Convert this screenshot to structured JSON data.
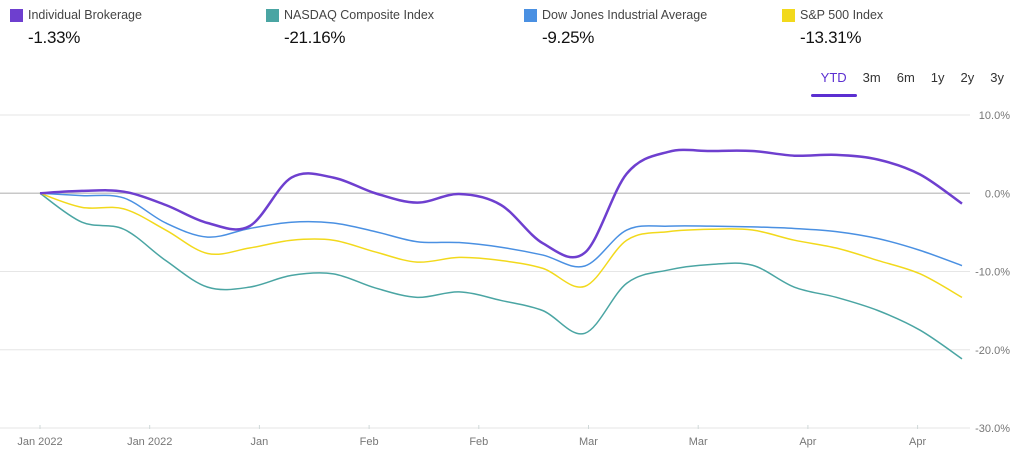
{
  "legend": [
    {
      "name": "Individual Brokerage",
      "value": "-1.33%",
      "color": "#6e3fcf"
    },
    {
      "name": "NASDAQ Composite Index",
      "value": "-21.16%",
      "color": "#4aa5a3"
    },
    {
      "name": "Dow Jones Industrial Average",
      "value": "-9.25%",
      "color": "#4a90e2"
    },
    {
      "name": "S&P 500 Index",
      "value": "-13.31%",
      "color": "#f2d91c"
    }
  ],
  "ranges": [
    {
      "label": "YTD",
      "active": true
    },
    {
      "label": "3m"
    },
    {
      "label": "6m"
    },
    {
      "label": "1y"
    },
    {
      "label": "2y"
    },
    {
      "label": "3y"
    }
  ],
  "chart_data": {
    "type": "line",
    "x_tick_labels": [
      "Jan 2022",
      "Jan 2022",
      "Jan",
      "Feb",
      "Feb",
      "Mar",
      "Mar",
      "Apr",
      "Apr"
    ],
    "y_tick_labels": [
      "10.0%",
      "0.0%",
      "-10.0%",
      "-20.0%",
      "-30.0%"
    ],
    "ylim": [
      -30,
      10
    ],
    "y_axis_position": "right",
    "grid": true,
    "series": [
      {
        "name": "Individual Brokerage",
        "color": "#6e3fcf",
        "values": [
          0,
          0.3,
          0.2,
          -1.5,
          -3.8,
          -4.2,
          2.0,
          2.0,
          0.0,
          -1.2,
          -0.1,
          -1.5,
          -6.4,
          -7.6,
          2.5,
          5.3,
          5.4,
          5.4,
          4.8,
          4.9,
          4.3,
          2.4,
          -1.33
        ]
      },
      {
        "name": "NASDAQ Composite Index",
        "color": "#4aa5a3",
        "values": [
          0,
          -3.7,
          -4.6,
          -8.6,
          -12.0,
          -12.0,
          -10.5,
          -10.3,
          -12.1,
          -13.3,
          -12.6,
          -13.7,
          -15.0,
          -17.9,
          -11.5,
          -9.8,
          -9.1,
          -9.2,
          -12.0,
          -13.3,
          -15.0,
          -17.5,
          -21.16
        ]
      },
      {
        "name": "Dow Jones Industrial Average",
        "color": "#4a90e2",
        "values": [
          0,
          -0.3,
          -0.6,
          -3.8,
          -5.6,
          -4.5,
          -3.7,
          -3.8,
          -4.9,
          -6.2,
          -6.3,
          -6.9,
          -7.9,
          -9.3,
          -4.7,
          -4.2,
          -4.2,
          -4.3,
          -4.5,
          -4.9,
          -5.8,
          -7.3,
          -9.25
        ]
      },
      {
        "name": "S&P 500 Index",
        "color": "#f2d91c",
        "values": [
          0,
          -1.8,
          -2.0,
          -4.7,
          -7.7,
          -7.0,
          -6.0,
          -6.0,
          -7.5,
          -8.8,
          -8.2,
          -8.6,
          -9.6,
          -11.9,
          -6.0,
          -4.9,
          -4.6,
          -4.7,
          -6.0,
          -7.0,
          -8.6,
          -10.3,
          -13.31
        ]
      }
    ]
  }
}
